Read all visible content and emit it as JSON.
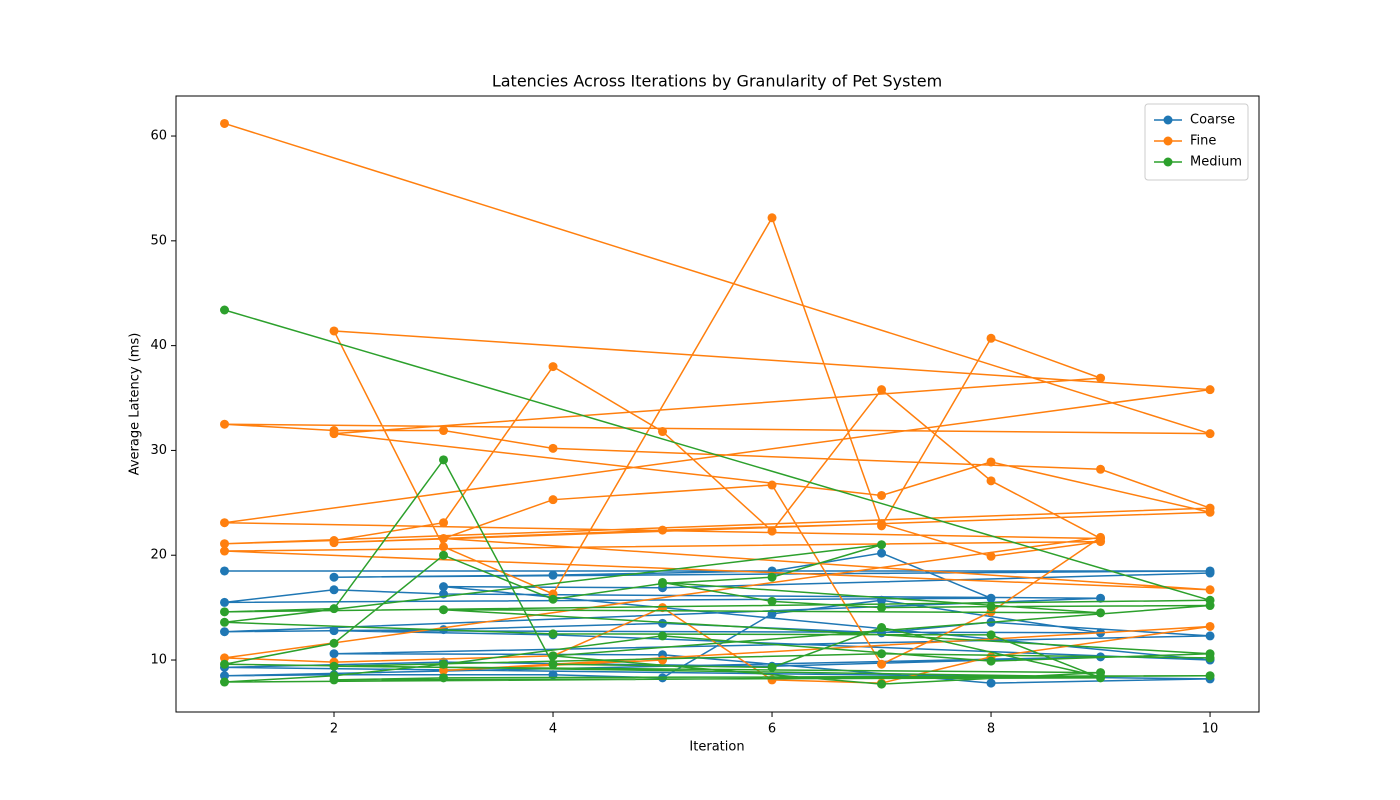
{
  "chart_data": {
    "type": "line",
    "title": "Latencies Across Iterations by Granularity of Pet System",
    "xlabel": "Iteration",
    "ylabel": "Average Latency (ms)",
    "xlim": [
      0.557,
      10.447
    ],
    "ylim": [
      5.04,
      63.82
    ],
    "xticks": [
      2,
      4,
      6,
      8,
      10
    ],
    "yticks": [
      10,
      20,
      30,
      40,
      50,
      60
    ],
    "legend": "upper right",
    "grid": false,
    "series": [
      {
        "name": "Coarse",
        "color": "#1f77b4",
        "x": [
          1,
          10,
          2,
          4,
          6,
          7,
          8,
          1,
          2,
          3,
          9,
          1,
          3,
          5,
          7,
          8,
          10,
          2,
          5,
          8,
          10,
          1,
          3,
          6,
          9,
          1,
          2,
          4,
          5,
          6,
          7,
          9,
          2,
          4,
          10,
          3,
          5,
          10
        ],
        "values": [
          18.5,
          18.5,
          17.9,
          18.1,
          18.5,
          20.2,
          15.9,
          15.5,
          16.7,
          16.3,
          15.9,
          12.7,
          12.9,
          13.5,
          12.6,
          13.6,
          12.3,
          10.6,
          10.5,
          7.8,
          8.2,
          9.3,
          9.8,
          9.4,
          10.3,
          8.5,
          8.6,
          8.6,
          8.3,
          14.4,
          15.7,
          12.6,
          12.8,
          12.4,
          10.0,
          17.0,
          16.9,
          18.3
        ]
      },
      {
        "name": "Fine",
        "color": "#ff7f0e",
        "x": [
          1,
          10,
          1,
          2,
          3,
          4,
          9,
          10,
          1,
          2,
          3,
          4,
          5,
          6,
          7,
          8,
          9,
          1,
          10,
          2,
          3,
          4,
          6,
          7,
          8,
          9,
          2,
          7,
          8,
          10,
          2,
          5,
          7,
          8,
          9,
          1,
          10,
          3,
          4,
          6,
          7,
          8,
          9,
          1,
          2,
          4,
          5,
          6,
          7,
          8,
          10,
          3,
          5
        ],
        "values": [
          61.2,
          31.6,
          32.5,
          31.9,
          31.9,
          30.2,
          28.2,
          24.5,
          21.1,
          21.4,
          23.1,
          38.0,
          31.8,
          22.3,
          35.8,
          27.1,
          21.6,
          23.1,
          35.8,
          41.4,
          20.8,
          16.3,
          52.2,
          22.8,
          40.7,
          36.9,
          31.6,
          25.7,
          28.9,
          24.1,
          21.2,
          22.4,
          23.0,
          19.9,
          21.3,
          20.4,
          16.7,
          21.6,
          25.3,
          26.7,
          9.6,
          14.6,
          21.7,
          10.2,
          9.8,
          10.4,
          15.0,
          8.1,
          7.8,
          10.3,
          13.2,
          9.0,
          10.0
        ]
      },
      {
        "name": "Medium",
        "color": "#2ca02c",
        "x": [
          1,
          10,
          1,
          2,
          3,
          4,
          6,
          7,
          9,
          1,
          2,
          3,
          4,
          5,
          6,
          7,
          1,
          4,
          8,
          9,
          2,
          3,
          10,
          1,
          2,
          3,
          5,
          8,
          10,
          3,
          9,
          5,
          6,
          7,
          8,
          10,
          4,
          7,
          9,
          2,
          7,
          10
        ],
        "values": [
          43.4,
          15.7,
          14.6,
          14.9,
          29.1,
          9.6,
          9.3,
          13.1,
          8.4,
          9.6,
          11.6,
          20.0,
          15.8,
          17.3,
          17.9,
          21.0,
          13.6,
          12.5,
          12.4,
          8.3,
          8.1,
          8.3,
          8.5,
          7.9,
          8.5,
          9.6,
          12.3,
          9.9,
          10.6,
          14.8,
          14.5,
          17.4,
          15.6,
          15.0,
          15.1,
          15.2,
          10.4,
          7.7,
          8.8,
          9.4,
          10.6,
          10.2
        ]
      }
    ]
  }
}
